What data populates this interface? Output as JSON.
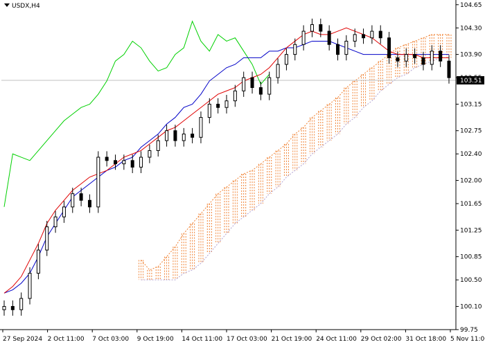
{
  "window": {
    "symbol_label": "USDX,H4"
  },
  "current_price_label": "103.51",
  "colors": {
    "tenkan": "#e00000",
    "kijun": "#0000c8",
    "chikou": "#00d000",
    "kumo_bull": "#f08030",
    "kumo_bear": "#b0a0d0",
    "candles": "#000000",
    "price_line": "#c0c0c0"
  },
  "chart_data": {
    "type": "candlestick",
    "ylim": [
      99.75,
      104.7
    ],
    "y_ticks": [
      "104.65",
      "104.30",
      "103.90",
      "103.55",
      "103.15",
      "102.75",
      "102.40",
      "102.00",
      "101.65",
      "101.25",
      "100.85",
      "100.50",
      "100.10",
      "99.75"
    ],
    "x_ticks": [
      "27 Sep 2024",
      "2 Oct 11:00",
      "7 Oct 03:00",
      "9 Oct 19:00",
      "14 Oct 11:00",
      "17 Oct 03:00",
      "21 Oct 19:00",
      "24 Oct 11:00",
      "29 Oct 02:00",
      "31 Oct 18:00",
      "5 Nov 11:00"
    ],
    "current_price": 103.51,
    "close": [
      100.1,
      100.05,
      100.22,
      100.6,
      100.95,
      101.3,
      101.45,
      101.6,
      101.8,
      101.7,
      101.6,
      102.35,
      102.3,
      102.25,
      102.3,
      102.2,
      102.35,
      102.45,
      102.6,
      102.75,
      102.6,
      102.7,
      102.65,
      102.95,
      103.15,
      103.1,
      103.2,
      103.35,
      103.55,
      103.4,
      103.3,
      103.55,
      103.75,
      103.9,
      104.05,
      104.25,
      104.35,
      104.25,
      104.05,
      103.9,
      104.1,
      104.2,
      104.15,
      104.25,
      104.15,
      103.85,
      103.8,
      103.9,
      103.85,
      103.75,
      103.95,
      103.8,
      103.55
    ],
    "tenkan": [
      100.3,
      100.4,
      100.55,
      100.8,
      101.05,
      101.35,
      101.55,
      101.7,
      101.85,
      101.95,
      102.05,
      102.1,
      102.15,
      102.25,
      102.35,
      102.4,
      102.45,
      102.55,
      102.65,
      102.75,
      102.8,
      102.9,
      103.0,
      103.1,
      103.2,
      103.3,
      103.35,
      103.4,
      103.5,
      103.55,
      103.6,
      103.7,
      103.85,
      104.0,
      104.1,
      104.2,
      104.25,
      104.2,
      104.2,
      104.25,
      104.3,
      104.25,
      104.2,
      104.15,
      104.05,
      103.95,
      103.9,
      103.9,
      103.9,
      103.85,
      103.85,
      103.85,
      103.85
    ],
    "kijun": [
      100.3,
      100.35,
      100.45,
      100.6,
      100.85,
      101.15,
      101.35,
      101.55,
      101.75,
      101.85,
      101.95,
      102.05,
      102.15,
      102.2,
      102.3,
      102.35,
      102.5,
      102.6,
      102.7,
      102.85,
      102.95,
      103.1,
      103.15,
      103.3,
      103.5,
      103.6,
      103.7,
      103.75,
      103.85,
      103.85,
      103.85,
      103.95,
      103.95,
      104.0,
      104.0,
      104.05,
      104.1,
      104.1,
      104.1,
      104.05,
      104.0,
      103.95,
      103.9,
      103.9,
      103.9,
      103.9,
      103.9,
      103.9,
      103.9,
      103.9,
      103.9,
      103.9,
      103.9
    ],
    "chikou": [
      101.6,
      102.4,
      102.35,
      102.3,
      102.45,
      102.6,
      102.75,
      102.9,
      103.0,
      103.1,
      103.15,
      103.3,
      103.5,
      103.8,
      103.9,
      104.1,
      104.0,
      103.8,
      103.65,
      103.7,
      103.9,
      104.0,
      104.4,
      104.1,
      103.95,
      104.2,
      104.1,
      104.15,
      103.95,
      103.75,
      103.45,
      103.6
    ],
    "senkou_a": [
      100.8,
      100.65,
      100.7,
      100.85,
      101.0,
      101.2,
      101.35,
      101.5,
      101.65,
      101.8,
      101.9,
      102.0,
      102.1,
      102.15,
      102.25,
      102.35,
      102.45,
      102.55,
      102.7,
      102.8,
      102.95,
      103.05,
      103.15,
      103.25,
      103.4,
      103.5,
      103.6,
      103.7,
      103.8,
      103.9,
      104.0,
      104.05,
      104.1,
      104.15,
      104.2,
      104.2,
      104.2
    ],
    "senkou_b": [
      100.5,
      100.5,
      100.5,
      100.5,
      100.5,
      100.6,
      100.65,
      100.75,
      100.9,
      101.05,
      101.2,
      101.35,
      101.45,
      101.55,
      101.65,
      101.8,
      101.9,
      102.05,
      102.15,
      102.25,
      102.4,
      102.5,
      102.6,
      102.7,
      102.85,
      102.95,
      103.1,
      103.2,
      103.35,
      103.45,
      103.55,
      103.6,
      103.7,
      103.75,
      103.8,
      103.85,
      103.85
    ]
  }
}
